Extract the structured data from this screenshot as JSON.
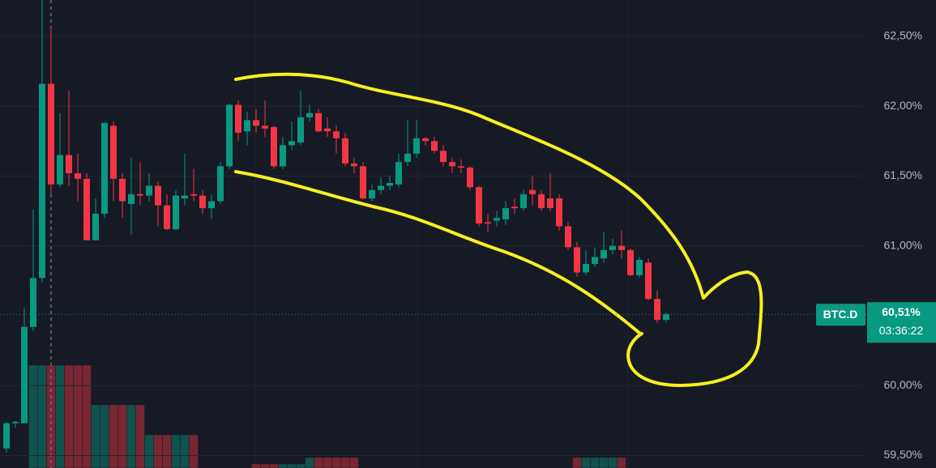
{
  "chart_data": {
    "type": "candlestick",
    "symbol": "BTC.D",
    "last_value": {
      "value": 60.51,
      "label": "60,51%"
    },
    "countdown": "03:36:22",
    "open": [
      59.55,
      59.73,
      59.73,
      60.42,
      60.77,
      62.16,
      61.44,
      61.65,
      61.52,
      61.48,
      61.04,
      61.23,
      61.86,
      61.48,
      61.3,
      61.37,
      61.36,
      61.43,
      61.29,
      61.12,
      61.34,
      61.37,
      61.36,
      61.27,
      61.32,
      61.57,
      62.01,
      61.82,
      61.9,
      61.86,
      61.85,
      61.57,
      61.72,
      61.74,
      61.92,
      61.95,
      61.84,
      61.82,
      61.77,
      61.59,
      61.57,
      61.34,
      61.4,
      61.43,
      61.44,
      61.6,
      61.66,
      61.77,
      61.75,
      61.68,
      61.6,
      61.57,
      61.56,
      61.42,
      61.17,
      61.18,
      61.19,
      61.28,
      61.27,
      61.4,
      61.37,
      61.34,
      61.34,
      61.14,
      60.99,
      60.81,
      60.87,
      60.91,
      60.97,
      61.0,
      60.97,
      60.79,
      60.88,
      60.62,
      60.47
    ],
    "high": [
      59.74,
      59.75,
      60.56,
      61.26,
      62.76,
      62.56,
      61.95,
      62.11,
      61.66,
      61.52,
      61.34,
      61.89,
      61.89,
      61.52,
      61.63,
      61.6,
      61.52,
      61.46,
      61.37,
      61.4,
      61.66,
      61.55,
      61.4,
      61.37,
      61.6,
      62.02,
      62.04,
      61.96,
      61.98,
      62.04,
      61.86,
      61.78,
      61.89,
      62.11,
      62.01,
      61.98,
      61.92,
      61.86,
      61.81,
      61.63,
      61.6,
      61.44,
      61.49,
      61.5,
      61.66,
      61.9,
      61.9,
      61.78,
      61.78,
      61.72,
      61.63,
      61.62,
      61.57,
      61.43,
      61.23,
      61.25,
      61.32,
      61.34,
      61.4,
      61.5,
      61.4,
      61.52,
      61.37,
      61.17,
      61.03,
      60.97,
      60.99,
      61.1,
      61.05,
      61.11,
      60.98,
      60.92,
      60.91,
      60.68,
      60.52
    ],
    "low": [
      59.52,
      59.7,
      59.73,
      60.39,
      60.74,
      61.37,
      61.42,
      61.43,
      61.32,
      61.04,
      61.04,
      61.2,
      61.32,
      61.2,
      61.08,
      61.29,
      61.32,
      61.14,
      61.11,
      61.11,
      61.29,
      61.32,
      61.23,
      61.19,
      61.3,
      61.55,
      61.75,
      61.72,
      61.81,
      61.78,
      61.55,
      61.55,
      61.69,
      61.72,
      61.89,
      61.81,
      61.78,
      61.66,
      61.57,
      61.52,
      61.33,
      61.32,
      61.37,
      61.4,
      61.42,
      61.57,
      61.63,
      61.72,
      61.66,
      61.57,
      61.52,
      61.52,
      61.4,
      61.14,
      61.1,
      61.14,
      61.15,
      61.23,
      61.25,
      61.29,
      61.25,
      61.25,
      61.11,
      60.97,
      60.78,
      60.79,
      60.85,
      60.88,
      60.94,
      60.91,
      60.78,
      60.77,
      60.61,
      60.45,
      60.45
    ],
    "close": [
      59.73,
      59.74,
      60.42,
      60.77,
      62.16,
      61.44,
      61.65,
      61.52,
      61.48,
      61.04,
      61.23,
      61.88,
      61.48,
      61.32,
      61.37,
      61.36,
      61.43,
      61.29,
      61.12,
      61.36,
      61.36,
      61.36,
      61.27,
      61.32,
      61.57,
      62.01,
      61.81,
      61.9,
      61.86,
      61.84,
      61.57,
      61.72,
      61.75,
      61.92,
      61.95,
      61.82,
      61.82,
      61.77,
      61.59,
      61.57,
      61.34,
      61.4,
      61.43,
      61.45,
      61.6,
      61.66,
      61.77,
      61.75,
      61.68,
      61.6,
      61.57,
      61.56,
      61.42,
      61.16,
      61.16,
      61.2,
      61.27,
      61.27,
      61.37,
      61.37,
      61.27,
      61.27,
      61.14,
      60.99,
      60.81,
      60.87,
      60.92,
      60.97,
      61.0,
      60.97,
      60.79,
      60.9,
      60.62,
      60.47,
      60.51
    ],
    "volume": [
      null,
      null,
      null,
      127,
      127,
      127,
      127,
      127,
      127,
      127,
      78,
      78,
      78,
      78,
      78,
      78,
      41,
      41,
      41,
      41,
      41,
      41,
      null,
      null,
      null,
      null,
      null,
      null,
      5,
      5,
      5,
      5,
      5,
      5,
      13,
      13,
      13,
      13,
      13,
      13,
      null,
      null,
      null,
      null,
      null,
      null,
      null,
      null,
      null,
      null,
      null,
      null,
      null,
      null,
      null,
      null,
      null,
      null,
      null,
      null,
      null,
      null,
      null,
      null,
      13,
      13,
      13,
      13,
      13,
      13,
      null,
      null,
      null,
      null,
      null
    ],
    "ylim": [
      59.41,
      62.76
    ],
    "yticks": [
      {
        "value": 59.5,
        "label": "59,50%"
      },
      {
        "value": 60.0,
        "label": "60,00%"
      },
      {
        "value": 61.0,
        "label": "61,00%"
      },
      {
        "value": 61.5,
        "label": "61,50%"
      },
      {
        "value": 62.0,
        "label": "62,00%"
      },
      {
        "value": 62.5,
        "label": "62,50%"
      }
    ],
    "grid": true,
    "colors": {
      "up": "#089981",
      "down": "#f23645",
      "background": "#161a25",
      "grid": "#242733",
      "annotation": "#f7f01f"
    }
  }
}
